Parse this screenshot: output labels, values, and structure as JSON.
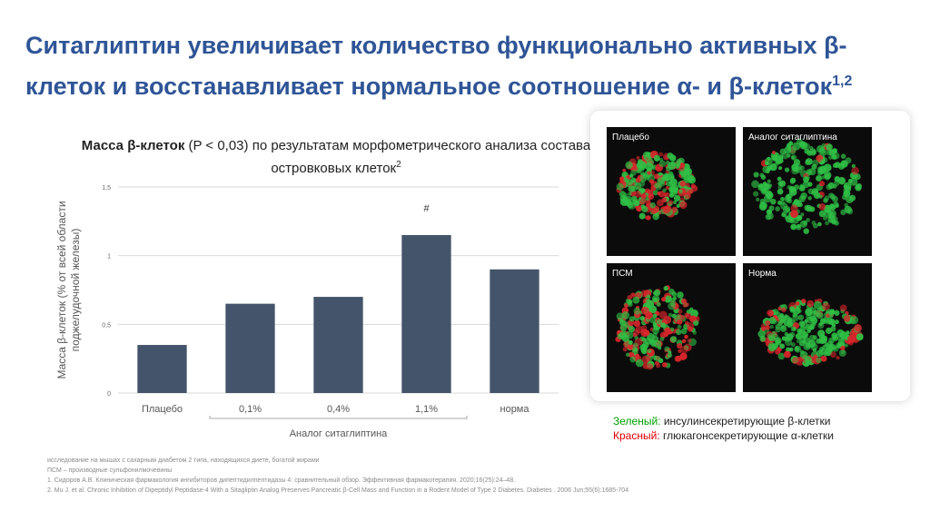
{
  "title": "Ситаглиптин увеличивает количество функционально активных β-клеток и восстанавливает нормальное соотношение α- и β-клеток",
  "title_sup": "1,2",
  "chart_data": {
    "type": "bar",
    "title_bold": "Масса β-клеток",
    "title_rest": " (P < 0,03) по результатам морфометрического анализа состава островковых клеток",
    "title_sup": "2",
    "ylabel": [
      "Масса β-клеток (% от всей области",
      "поджелудочной железы)"
    ],
    "categories": [
      "Плацебо",
      "0,1%",
      "0,4%",
      "1,1%",
      "норма"
    ],
    "values": [
      0.35,
      0.65,
      0.7,
      1.15,
      0.9
    ],
    "color": "#44546a",
    "ylim": [
      0,
      1.5
    ],
    "yticks": [
      0,
      {
        "value": 0.5,
        "label": "0,5"
      },
      1,
      {
        "value": 1.5,
        "label": "1,5"
      }
    ],
    "grid": true,
    "group_label": "Аналог ситаглиптина",
    "annotation": "#"
  },
  "micrographs": [
    "Плацебо",
    "Аналог ситаглиптина",
    "ПСМ",
    "Норма"
  ],
  "legend": [
    {
      "name": "Зеленый:",
      "text": " инсулинсекретирующие β-клетки",
      "color": "#00a000"
    },
    {
      "name": "Красный:",
      "text": " глюкагонсекретирующие α-клетки",
      "color": "#e00000"
    }
  ],
  "footnotes": [
    "исследование на мышах с сахарным диабетом 2 типа, находящихся диете, богатой жирами",
    "ПСМ – производные сульфонилмочевины",
    "1. Сидоров А.В. Клиническая фармакология ингибиторов дипептидилпептидазы 4: сравнительный обзор. Эффективная фармакотерапия. 2020;16(25):24–48.",
    "2. Mu J. et al. Chronic Inhibition of Dipeptidyl Peptidase-4 With a Sitagliptin Analog Preserves Pancreatic β-Cell Mass and Function in a Rodent Model of Type 2 Diabetes. Diabetes . 2006 Jun;55(6):1685-704"
  ]
}
